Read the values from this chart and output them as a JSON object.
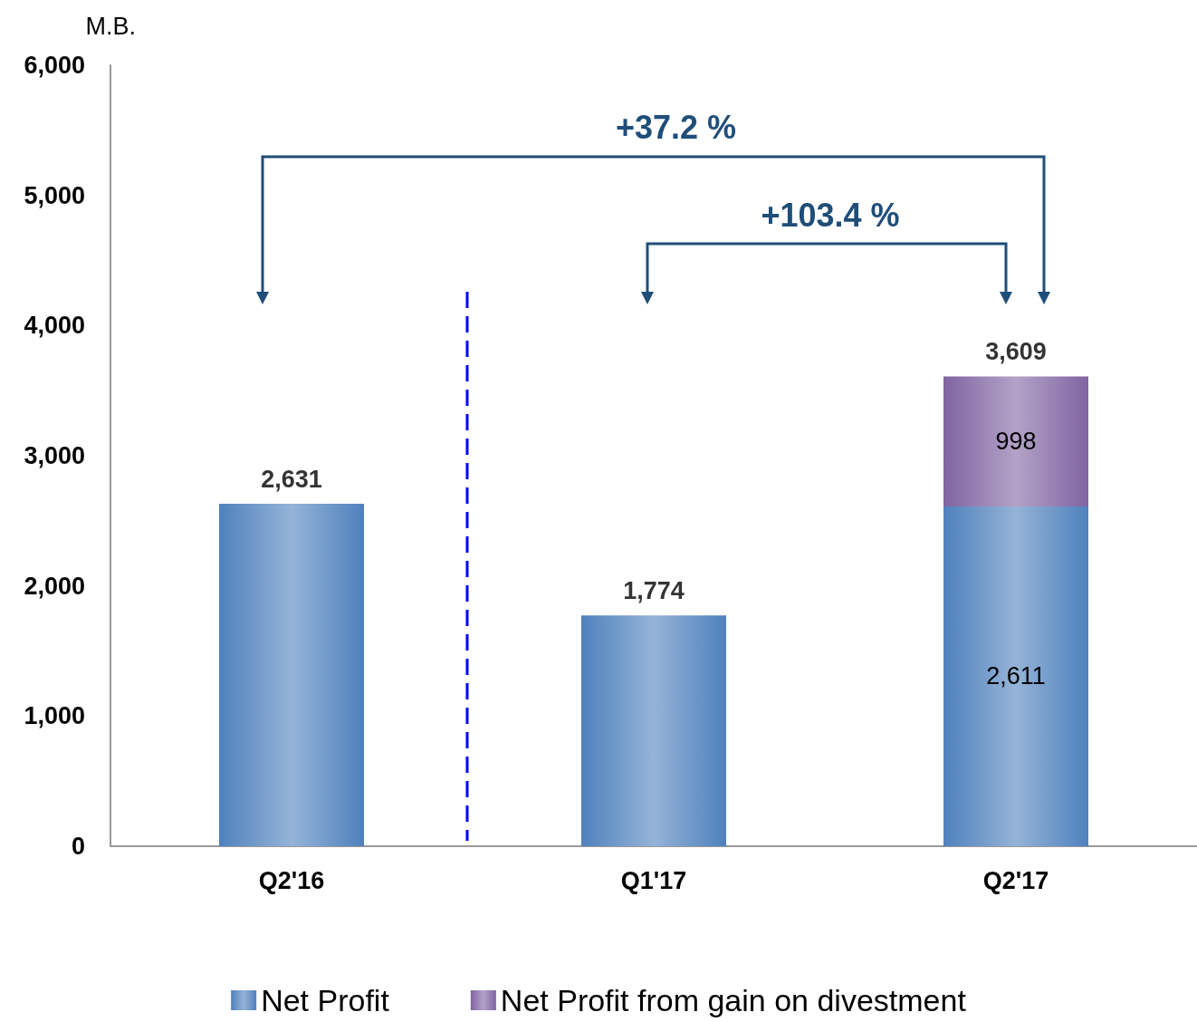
{
  "chart_data": {
    "type": "bar",
    "stacked": true,
    "ylabel": "M.B.",
    "categories": [
      "Q2'16",
      "Q1'17",
      "Q2'17"
    ],
    "series": [
      {
        "name": "Net Profit",
        "color": "#4f81bd",
        "values": [
          2631,
          1774,
          2611
        ],
        "value_labels": [
          null,
          null,
          "2,611"
        ]
      },
      {
        "name": "Net Profit from gain on divestment",
        "color": "#8064a2",
        "values": [
          null,
          null,
          998
        ],
        "value_labels": [
          null,
          null,
          "998"
        ]
      }
    ],
    "totals": [
      "2,631",
      "1,774",
      "3,609"
    ],
    "ylim": [
      0,
      6000
    ],
    "yticks": [
      {
        "value": 0,
        "label": "0"
      },
      {
        "value": 1000,
        "label": "1,000"
      },
      {
        "value": 2000,
        "label": "2,000"
      },
      {
        "value": 3000,
        "label": "3,000"
      },
      {
        "value": 4000,
        "label": "4,000"
      },
      {
        "value": 5000,
        "label": "5,000"
      },
      {
        "value": 6000,
        "label": "6,000"
      }
    ],
    "grid": false,
    "legend": "bottom",
    "annotations": [
      "+37.2 %",
      "+103.4 %"
    ]
  }
}
